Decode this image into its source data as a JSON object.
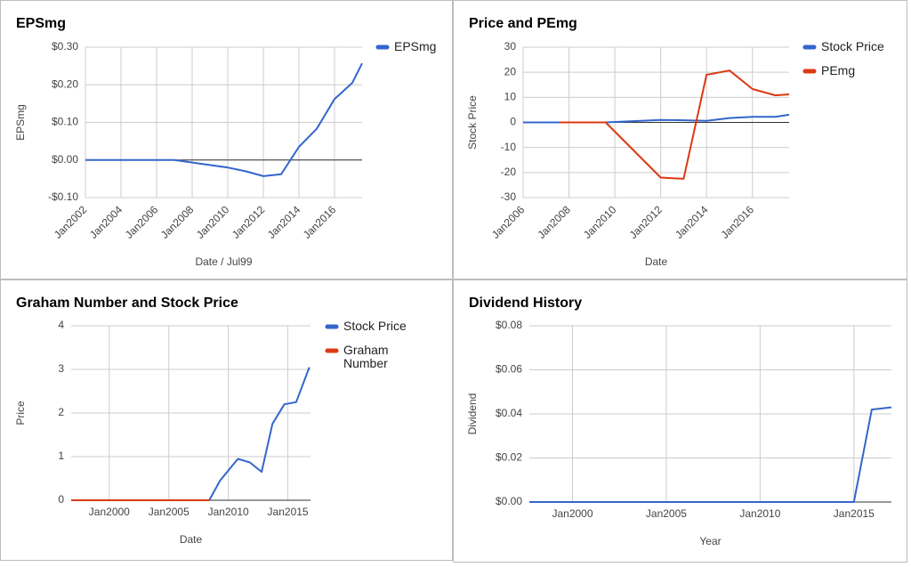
{
  "chart_data": [
    {
      "type": "line",
      "title": "EPSmg",
      "x_label": "Date / Jul99",
      "y_label": "EPSmg",
      "x": [
        2002,
        2007,
        2008.5,
        2010,
        2011,
        2012,
        2013,
        2014,
        2015,
        2016,
        2017,
        2017.55
      ],
      "series": [
        {
          "name": "EPSmg",
          "color": "#3366cc",
          "values": [
            0,
            0,
            -0.01,
            -0.02,
            -0.03,
            -0.043,
            -0.038,
            0.035,
            0.083,
            0.162,
            0.205,
            0.257
          ]
        }
      ],
      "xlim": [
        2002,
        2017.55
      ],
      "xticks": [
        {
          "value": 2002,
          "label": "Jan2002"
        },
        {
          "value": 2004,
          "label": "Jan2004"
        },
        {
          "value": 2006,
          "label": "Jan2006"
        },
        {
          "value": 2008,
          "label": "Jan2008"
        },
        {
          "value": 2010,
          "label": "Jan2010"
        },
        {
          "value": 2012,
          "label": "Jan2012"
        },
        {
          "value": 2014,
          "label": "Jan2014"
        },
        {
          "value": 2016,
          "label": "Jan2016"
        }
      ],
      "ylim": [
        -0.1,
        0.3
      ],
      "yticks": [
        {
          "value": 0.3,
          "label": "$0.30"
        },
        {
          "value": 0.2,
          "label": "$0.20"
        },
        {
          "value": 0.1,
          "label": "$0.10"
        },
        {
          "value": 0,
          "label": "$0.00"
        },
        {
          "value": -0.1,
          "label": "-$0.10"
        }
      ],
      "grid": true,
      "legend": "right"
    },
    {
      "type": "line",
      "title": "Price and PEmg",
      "x_label": "Date",
      "y_label": "Stock Price",
      "x": [
        2006,
        2007.6,
        2009.6,
        2012,
        2013,
        2014,
        2015,
        2016,
        2017,
        2017.6
      ],
      "series": [
        {
          "name": "Stock Price",
          "color": "#3366cc",
          "values": [
            0,
            0,
            0,
            0.95,
            0.85,
            0.65,
            1.75,
            2.2,
            2.25,
            3.05
          ]
        },
        {
          "name": "PEmg",
          "color": "#dc3912",
          "values": [
            null,
            0,
            0,
            -22,
            -22.5,
            19,
            20.7,
            13.3,
            10.8,
            11.2
          ]
        }
      ],
      "xlim": [
        2006,
        2017.6
      ],
      "xticks": [
        {
          "value": 2006,
          "label": "Jan2006"
        },
        {
          "value": 2008,
          "label": "Jan2008"
        },
        {
          "value": 2010,
          "label": "Jan2010"
        },
        {
          "value": 2012,
          "label": "Jan2012"
        },
        {
          "value": 2014,
          "label": "Jan2014"
        },
        {
          "value": 2016,
          "label": "Jan2016"
        }
      ],
      "ylim": [
        -30,
        30
      ],
      "yticks": [
        30,
        20,
        10,
        0,
        -10,
        -20,
        -30
      ],
      "grid": true,
      "legend": "right"
    },
    {
      "type": "line",
      "title": "Graham Number and Stock Price",
      "x_label": "Date",
      "y_label": "Price",
      "x": [
        1996.8,
        2008.4,
        2009.3,
        2010.8,
        2011.8,
        2012.8,
        2013.7,
        2014.7,
        2015.7,
        2016.8
      ],
      "series": [
        {
          "name": "Stock Price",
          "color": "#3366cc",
          "values": [
            0,
            0,
            0.45,
            0.95,
            0.87,
            0.65,
            1.75,
            2.2,
            2.25,
            3.05
          ]
        },
        {
          "name": "Graham Number",
          "color": "#dc3912",
          "values": [
            0,
            0,
            null,
            null,
            null,
            null,
            null,
            null,
            null,
            null
          ]
        }
      ],
      "xlim": [
        1996.8,
        2016.9
      ],
      "xticks": [
        {
          "value": 2000,
          "label": "Jan2000"
        },
        {
          "value": 2005,
          "label": "Jan2005"
        },
        {
          "value": 2010,
          "label": "Jan2010"
        },
        {
          "value": 2015,
          "label": "Jan2015"
        }
      ],
      "ylim": [
        0,
        4
      ],
      "yticks": [
        4,
        3,
        2,
        1,
        0
      ],
      "grid": true,
      "legend": "right"
    },
    {
      "type": "line",
      "title": "Dividend History",
      "x_label": "Year",
      "y_label": "Dividend",
      "x": [
        1997.7,
        2015,
        2015.95,
        2017
      ],
      "series": [
        {
          "color": "#3366cc",
          "values": [
            0,
            0,
            0.042,
            0.043
          ]
        }
      ],
      "xlim": [
        1997.7,
        2017
      ],
      "xticks": [
        {
          "value": 2000,
          "label": "Jan2000"
        },
        {
          "value": 2005,
          "label": "Jan2005"
        },
        {
          "value": 2010,
          "label": "Jan2010"
        },
        {
          "value": 2015,
          "label": "Jan2015"
        }
      ],
      "ylim": [
        0,
        0.08
      ],
      "yticks": [
        {
          "value": 0.08,
          "label": "$0.08"
        },
        {
          "value": 0.06,
          "label": "$0.06"
        },
        {
          "value": 0.04,
          "label": "$0.04"
        },
        {
          "value": 0.02,
          "label": "$0.02"
        },
        {
          "value": 0,
          "label": "$0.00"
        }
      ],
      "grid": true
    }
  ]
}
